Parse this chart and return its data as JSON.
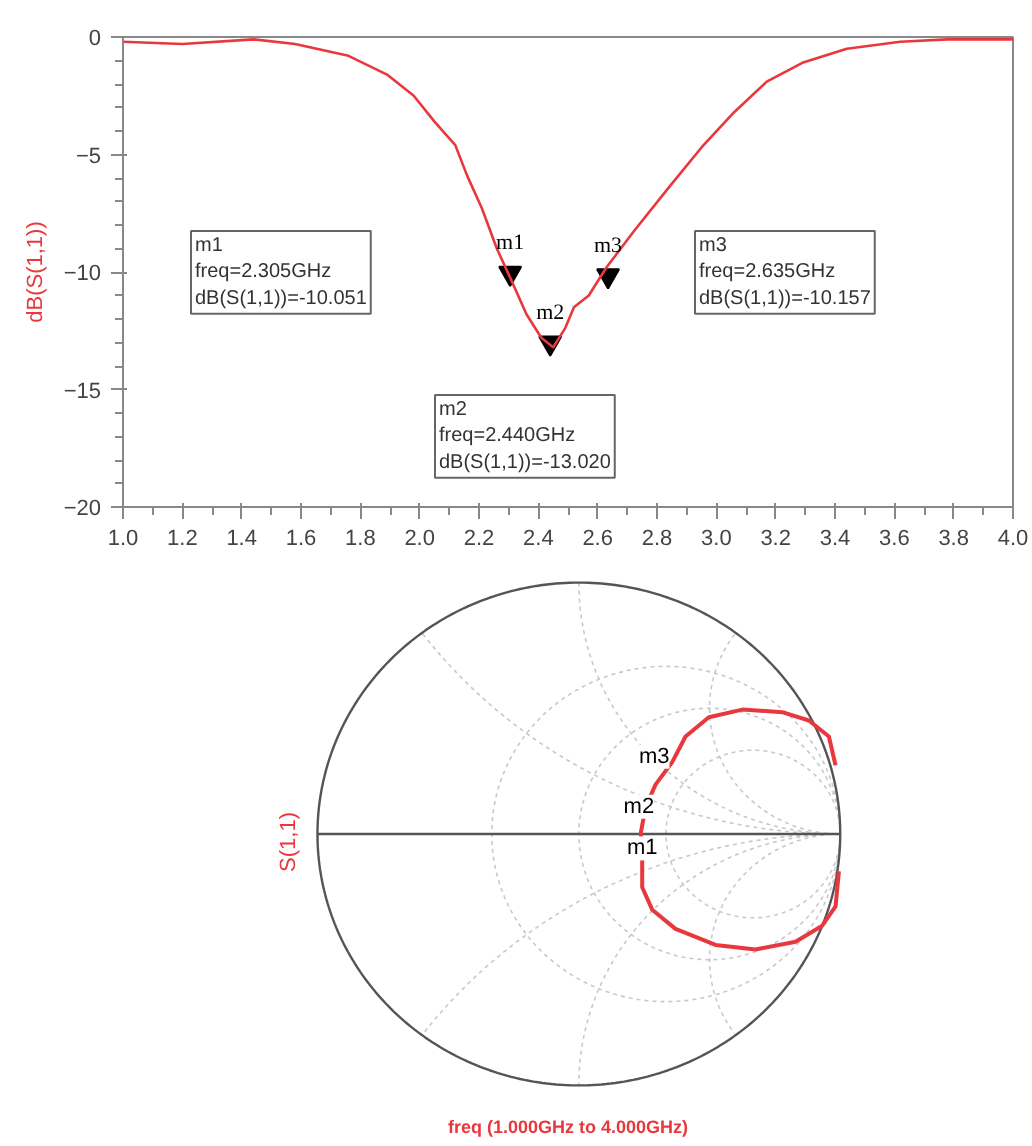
{
  "chart_data": [
    {
      "type": "line",
      "ylabel": "dB(S(1,1))",
      "xlim": [
        1.0,
        4.0
      ],
      "ylim": [
        -20,
        0
      ],
      "xticks": [
        {
          "value": 1.0,
          "label": "1.0"
        },
        1.2,
        1.4,
        1.6,
        1.8,
        {
          "value": 2.0,
          "label": "2.0"
        },
        2.2,
        2.4,
        2.6,
        2.8,
        {
          "value": 3.0,
          "label": "3.0"
        },
        3.2,
        3.4,
        3.6,
        3.8,
        {
          "value": 4.0,
          "label": "4.0"
        }
      ],
      "yticks": [
        -20,
        -15,
        -10,
        -5,
        0
      ],
      "grid": false,
      "series": [
        {
          "type": "line",
          "color": "#e8383d",
          "x": [
            1.0,
            1.2,
            1.44,
            1.58,
            1.76,
            1.89,
            1.98,
            2.05,
            2.12,
            2.16,
            2.21,
            2.26,
            2.3,
            2.36,
            2.41,
            2.45,
            2.49,
            2.52,
            2.57,
            2.63,
            2.72,
            2.84,
            2.95,
            3.06,
            3.17,
            3.29,
            3.44,
            3.62,
            3.78,
            4.0
          ],
          "values": [
            -0.2,
            -0.3,
            -0.1,
            -0.3,
            -0.8,
            -1.6,
            -2.5,
            -3.6,
            -4.6,
            -5.9,
            -7.3,
            -9.0,
            -10.1,
            -11.8,
            -12.8,
            -13.2,
            -12.4,
            -11.5,
            -11.0,
            -9.8,
            -8.3,
            -6.4,
            -4.7,
            -3.2,
            -1.9,
            -1.1,
            -0.5,
            -0.2,
            -0.1,
            -0.1
          ]
        },
        {
          "type": "scatter",
          "marker": "triangle",
          "color": "#000000",
          "x": [
            2.305,
            2.44,
            2.635
          ],
          "values": [
            -10.051,
            -13.02,
            -10.157
          ],
          "value_labels": [
            "m1",
            "m2",
            "m3"
          ]
        }
      ],
      "annotations": [
        "m1\nfreq=2.305GHz\ndB(S(1,1))=-10.051",
        "m2\nfreq=2.440GHz\ndB(S(1,1))=-13.020",
        "m3\nfreq=2.635GHz\ndB(S(1,1))=-10.157"
      ]
    },
    {
      "type": "other",
      "ylabel": "S(1,1)",
      "xlabel": "freq (1.000GHz to 4.000GHz)",
      "annotations": [
        "m1",
        "m2",
        "m3"
      ]
    }
  ]
}
